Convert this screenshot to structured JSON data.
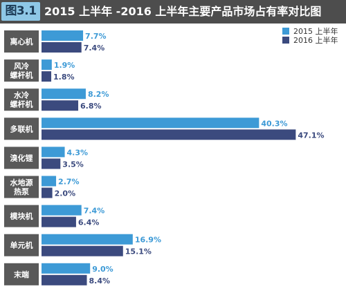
{
  "figure": {
    "badge": "图3.1",
    "title": "2015 上半年 -2016 上半年主要产品市场占有率对比图"
  },
  "chart_data": {
    "type": "bar",
    "orientation": "horizontal",
    "title": "2015 上半年 -2016 上半年主要产品市场占有率对比图",
    "categories": [
      "离心机",
      "风冷\n螺杆机",
      "水冷\n螺杆机",
      "多联机",
      "溴化锂",
      "水地源\n热泵",
      "模块机",
      "单元机",
      "末端"
    ],
    "series": [
      {
        "name": "2015 上半年",
        "color": "#3d9ad6",
        "values": [
          7.7,
          1.9,
          8.2,
          40.3,
          4.3,
          2.7,
          7.4,
          16.9,
          9.0
        ],
        "labels": [
          "7.7%",
          "1.9%",
          "8.2%",
          "40.3%",
          "4.3%",
          "2.7%",
          "7.4%",
          "16.9%",
          "9.0%"
        ]
      },
      {
        "name": "2016 上半年",
        "color": "#3b4a7e",
        "values": [
          7.4,
          1.8,
          6.8,
          47.1,
          3.5,
          2.0,
          6.4,
          15.1,
          8.4
        ],
        "labels": [
          "7.4%",
          "1.8%",
          "6.8%",
          "47.1%",
          "3.5%",
          "2.0%",
          "6.4%",
          "15.1%",
          "8.4%"
        ]
      }
    ],
    "xlim": [
      0,
      50
    ],
    "unit": "%",
    "grid": false,
    "legend": "top-right"
  },
  "style": {
    "category_box_color": "#595959",
    "series_label_colors": [
      "#3d9ad6",
      "#3b4a7e"
    ]
  }
}
